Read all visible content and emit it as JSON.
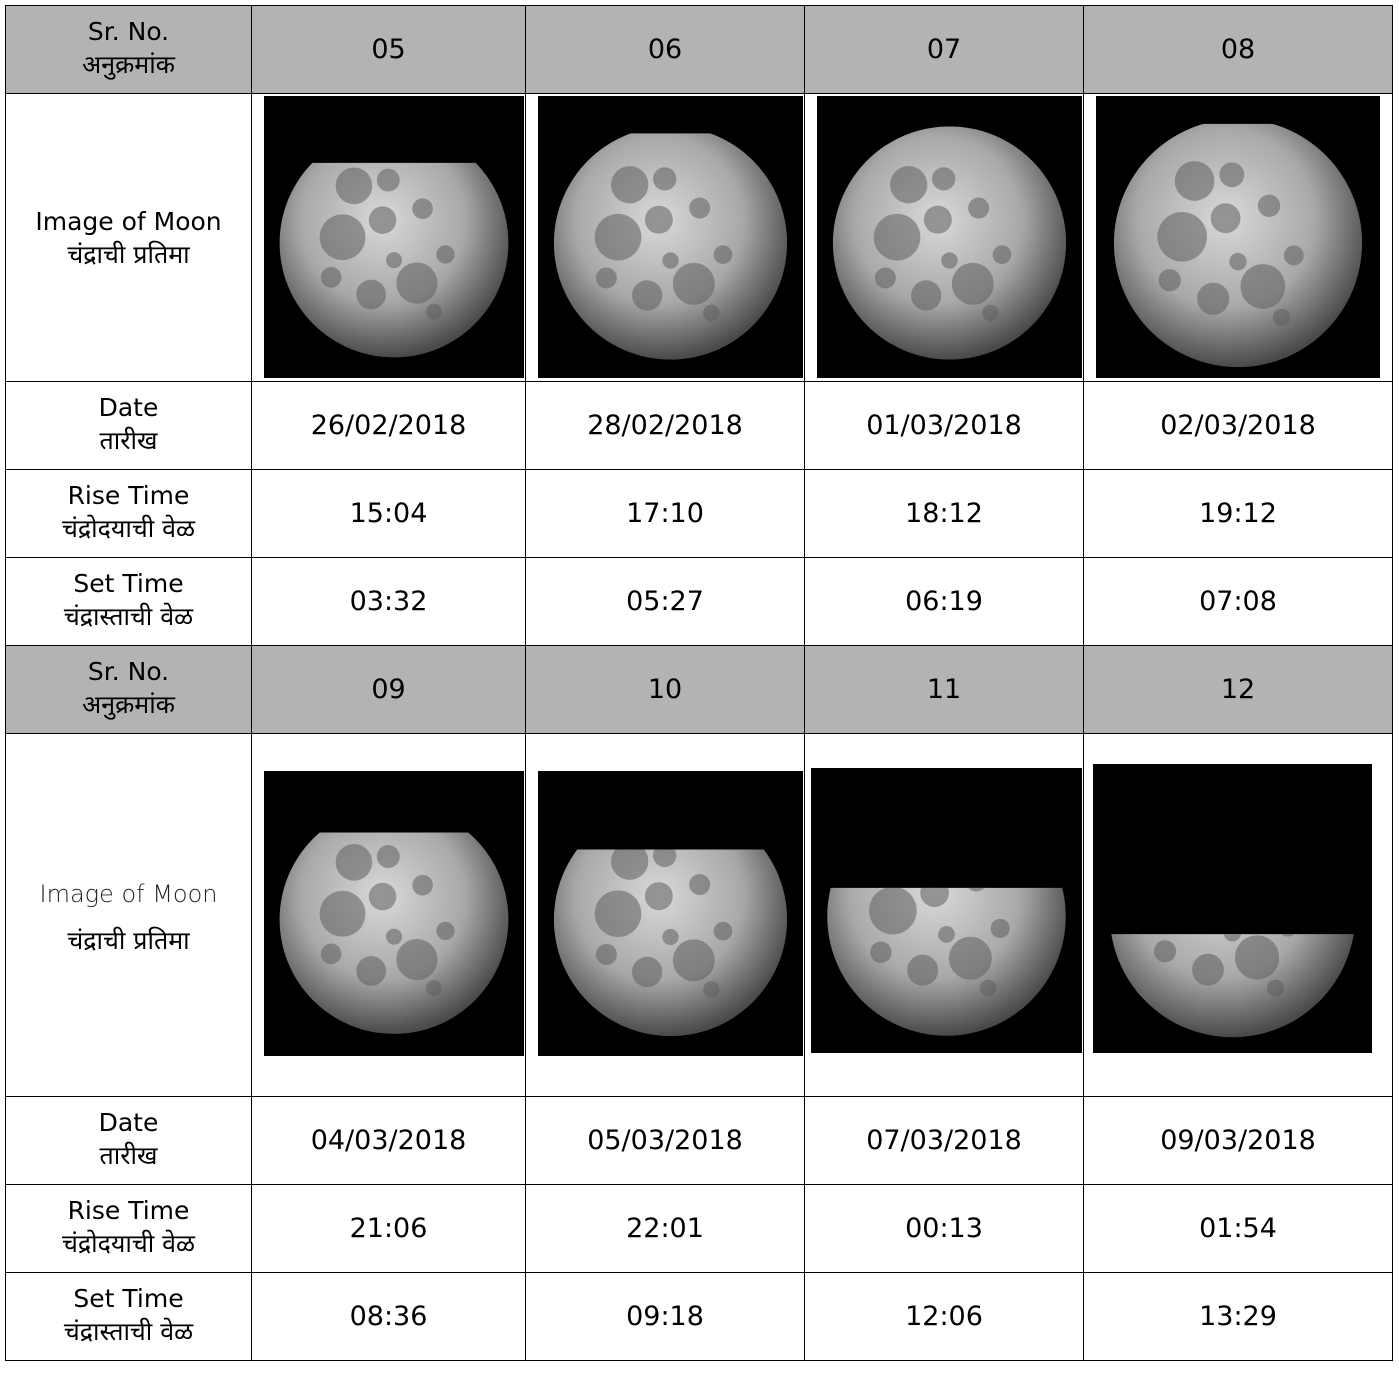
{
  "labels": {
    "sr_no_en": "Sr. No.",
    "sr_no_mr": "अनुक्रमांक",
    "image_en": "Image of Moon",
    "image_mr": "चंद्राची प्रतिमा",
    "date_en": "Date",
    "date_mr": "तारीख",
    "rise_en": "Rise Time",
    "rise_mr": "चंद्रोदयाची वेळ",
    "set_en": "Set Time",
    "set_mr": "चंद्रास्ताची वेळ"
  },
  "colors": {
    "header_bg": "#b3b3b3",
    "border": "#000000",
    "sky": "#000000"
  },
  "groups": [
    {
      "entries": [
        {
          "sr": "05",
          "date": "26/02/2018",
          "rise": "15:04",
          "set": "03:32",
          "illumination": 0.85,
          "image": "moon-photo"
        },
        {
          "sr": "06",
          "date": "28/02/2018",
          "rise": "17:10",
          "set": "05:27",
          "illumination": 0.97,
          "image": "moon-photo"
        },
        {
          "sr": "07",
          "date": "01/03/2018",
          "rise": "18:12",
          "set": "06:19",
          "illumination": 1.0,
          "image": "moon-photo"
        },
        {
          "sr": "08",
          "date": "02/03/2018",
          "rise": "19:12",
          "set": "07:08",
          "illumination": 0.98,
          "image": "moon-photo"
        }
      ]
    },
    {
      "entries": [
        {
          "sr": "09",
          "date": "04/03/2018",
          "rise": "21:06",
          "set": "08:36",
          "illumination": 0.88,
          "image": "moon-photo"
        },
        {
          "sr": "10",
          "date": "05/03/2018",
          "rise": "22:01",
          "set": "09:18",
          "illumination": 0.8,
          "image": "moon-photo"
        },
        {
          "sr": "11",
          "date": "07/03/2018",
          "rise": "00:13",
          "set": "12:06",
          "illumination": 0.62,
          "image": "moon-photo"
        },
        {
          "sr": "12",
          "date": "09/03/2018",
          "rise": "01:54",
          "set": "13:29",
          "illumination": 0.42,
          "image": "moon-photo"
        }
      ]
    }
  ]
}
